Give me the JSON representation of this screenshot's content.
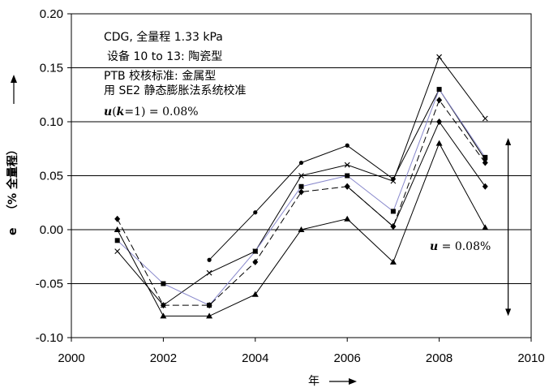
{
  "chart_data": {
    "type": "line",
    "xlabel": "年",
    "ylabel_symbol": "e",
    "ylabel_unit": "（% 全量程）",
    "xlim": [
      2000,
      2010
    ],
    "ylim": [
      -0.1,
      0.2
    ],
    "xticks": [
      2000,
      2002,
      2004,
      2006,
      2008,
      2010
    ],
    "xtick_labels": [
      "2000",
      "2002",
      "2004",
      "2006",
      "2008",
      "2010"
    ],
    "yticks": [
      0.2,
      0.15,
      0.1,
      0.05,
      0.0,
      -0.05,
      -0.1
    ],
    "ytick_labels": [
      "0.20",
      "0.15",
      "0.10",
      "0.05",
      "0.00",
      "-0.05",
      "-0.10"
    ],
    "grid": "horizontal",
    "annotations": [
      "CDG, 全量程 1.33 kPa",
      "设备  10 to 13: 陶瓷型",
      "PTB 校核标准: 金属型",
      "用 SE2 静态膨胀法系统校准"
    ],
    "uncertainty_note": {
      "symbol": "u",
      "arg": "k",
      "arg_value": "1",
      "value": "0.08%"
    },
    "band_label": {
      "symbol": "u",
      "value": "0.08%"
    },
    "series": [
      {
        "marker": "circle",
        "color": "#000000",
        "dash": "solid",
        "points": [
          [
            2003,
            -0.028
          ],
          [
            2004,
            0.016
          ],
          [
            2005,
            0.062
          ],
          [
            2006,
            0.078
          ],
          [
            2007,
            0.047
          ],
          [
            2008,
            0.13
          ],
          [
            2009,
            0.065
          ]
        ]
      },
      {
        "marker": "x",
        "color": "#000000",
        "dash": "solid",
        "points": [
          [
            2001,
            -0.02
          ],
          [
            2002,
            -0.07
          ],
          [
            2003,
            -0.04
          ],
          [
            2004,
            -0.02
          ],
          [
            2005,
            0.05
          ],
          [
            2006,
            0.06
          ],
          [
            2007,
            0.045
          ],
          [
            2008,
            0.16
          ],
          [
            2009,
            0.103
          ]
        ]
      },
      {
        "marker": "square",
        "color": "#8888cc",
        "dash": "solid",
        "points": [
          [
            2001,
            -0.01
          ],
          [
            2002,
            -0.05
          ],
          [
            2003,
            -0.07
          ],
          [
            2004,
            -0.02
          ],
          [
            2005,
            0.04
          ],
          [
            2006,
            0.05
          ],
          [
            2007,
            0.017
          ],
          [
            2008,
            0.13
          ],
          [
            2009,
            0.067
          ]
        ]
      },
      {
        "marker": "diamond",
        "color": "#000000",
        "dash": "dashed",
        "points": [
          [
            2001,
            0.01
          ],
          [
            2002,
            -0.07
          ],
          [
            2003,
            -0.07
          ],
          [
            2004,
            -0.03
          ],
          [
            2005,
            0.035
          ],
          [
            2006,
            0.04
          ],
          [
            2007,
            0.003
          ],
          [
            2008,
            0.12
          ],
          [
            2009,
            0.062
          ]
        ]
      },
      {
        "marker": "diamond",
        "color": "#000000",
        "dash": "solid",
        "points": [
          [
            2006,
            0.04
          ],
          [
            2007,
            0.003
          ],
          [
            2008,
            0.1
          ],
          [
            2009,
            0.04
          ]
        ]
      },
      {
        "marker": "triangle",
        "color": "#000000",
        "dash": "solid",
        "points": [
          [
            2001,
            0.0
          ],
          [
            2002,
            -0.08
          ],
          [
            2003,
            -0.08
          ],
          [
            2004,
            -0.06
          ],
          [
            2005,
            0.0
          ],
          [
            2006,
            0.01
          ],
          [
            2007,
            -0.03
          ],
          [
            2008,
            0.08
          ],
          [
            2009,
            0.002
          ]
        ]
      }
    ],
    "uncertainty_band": {
      "x": 2009.5,
      "from": -0.08,
      "to": 0.085
    }
  }
}
